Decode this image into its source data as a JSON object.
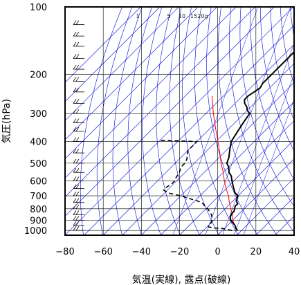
{
  "chart_data": {
    "type": "line",
    "chart_kind": "skew-T log-p diagram",
    "xlabel": "気温(実線), 露点(破線)",
    "ylabel": "気圧(hPa)",
    "x_ticks": [
      -80,
      -60,
      -40,
      -20,
      0,
      20,
      40
    ],
    "y_ticks": [
      100,
      200,
      300,
      400,
      500,
      600,
      700,
      800,
      900,
      1000
    ],
    "xlim": [
      -80,
      40
    ],
    "ylim": [
      1050,
      100
    ],
    "y_scale": "log",
    "mixing_ratio_labels": [
      "1",
      "5",
      "10",
      "15",
      "20g"
    ],
    "colors": {
      "temperature": "#000000",
      "dewpoint": "#000000",
      "parcel": "#ff0000",
      "reference_lines": "#0000dd",
      "grid": "#000000"
    },
    "series": [
      {
        "line": "solid",
        "points": [
          [
            1000,
            8
          ],
          [
            980,
            6
          ],
          [
            950,
            4
          ],
          [
            920,
            1
          ],
          [
            900,
            -1
          ],
          [
            870,
            -3
          ],
          [
            840,
            -4
          ],
          [
            820,
            -4
          ],
          [
            800,
            -5
          ],
          [
            780,
            -6
          ],
          [
            760,
            -6
          ],
          [
            740,
            -8
          ],
          [
            720,
            -9
          ],
          [
            700,
            -10
          ],
          [
            680,
            -13
          ],
          [
            650,
            -16
          ],
          [
            620,
            -19
          ],
          [
            600,
            -21
          ],
          [
            570,
            -24
          ],
          [
            550,
            -27
          ],
          [
            520,
            -30
          ],
          [
            500,
            -33
          ],
          [
            470,
            -35
          ],
          [
            450,
            -37
          ],
          [
            430,
            -39
          ],
          [
            410,
            -41
          ],
          [
            400,
            -42
          ],
          [
            380,
            -43
          ],
          [
            360,
            -44
          ],
          [
            340,
            -45
          ],
          [
            320,
            -46
          ],
          [
            300,
            -47
          ],
          [
            290,
            -50
          ],
          [
            280,
            -52
          ],
          [
            270,
            -55
          ],
          [
            260,
            -57
          ],
          [
            250,
            -57
          ],
          [
            240,
            -56
          ],
          [
            230,
            -55
          ],
          [
            220,
            -56
          ],
          [
            210,
            -56
          ],
          [
            200,
            -56
          ],
          [
            190,
            -56
          ],
          [
            180,
            -56
          ],
          [
            170,
            -56
          ],
          [
            160,
            -56
          ],
          [
            150,
            -55
          ],
          [
            140,
            -56
          ],
          [
            130,
            -57
          ],
          [
            120,
            -58
          ],
          [
            110,
            -58
          ],
          [
            100,
            -59
          ]
        ]
      },
      {
        "line": "dashed",
        "points": [
          [
            1000,
            5
          ],
          [
            990,
            2
          ],
          [
            980,
            -1
          ],
          [
            975,
            -5
          ],
          [
            965,
            -9
          ],
          [
            950,
            -10
          ],
          [
            920,
            -10
          ],
          [
            900,
            -11
          ],
          [
            880,
            -12
          ],
          [
            850,
            -14
          ],
          [
            820,
            -17
          ],
          [
            800,
            -19
          ],
          [
            780,
            -22
          ],
          [
            760,
            -24
          ],
          [
            740,
            -28
          ],
          [
            720,
            -34
          ],
          [
            700,
            -40
          ],
          [
            680,
            -48
          ],
          [
            660,
            -52
          ],
          [
            640,
            -52
          ],
          [
            620,
            -51
          ],
          [
            600,
            -51
          ],
          [
            580,
            -52
          ],
          [
            550,
            -53
          ],
          [
            520,
            -55
          ],
          [
            500,
            -55
          ],
          [
            480,
            -56
          ],
          [
            460,
            -58
          ],
          [
            440,
            -60
          ],
          [
            420,
            -60
          ],
          [
            400,
            -60
          ],
          [
            395,
            -80
          ]
        ]
      },
      {
        "line": "solid",
        "points": [
          [
            1000,
            8
          ],
          [
            950,
            4
          ],
          [
            900,
            0
          ],
          [
            850,
            -3
          ],
          [
            800,
            -7
          ],
          [
            750,
            -11
          ],
          [
            700,
            -15
          ],
          [
            650,
            -20
          ],
          [
            600,
            -25
          ],
          [
            550,
            -30
          ],
          [
            500,
            -36
          ],
          [
            450,
            -42
          ],
          [
            400,
            -49
          ],
          [
            350,
            -57
          ],
          [
            300,
            -66
          ],
          [
            250,
            -76
          ]
        ]
      }
    ]
  }
}
